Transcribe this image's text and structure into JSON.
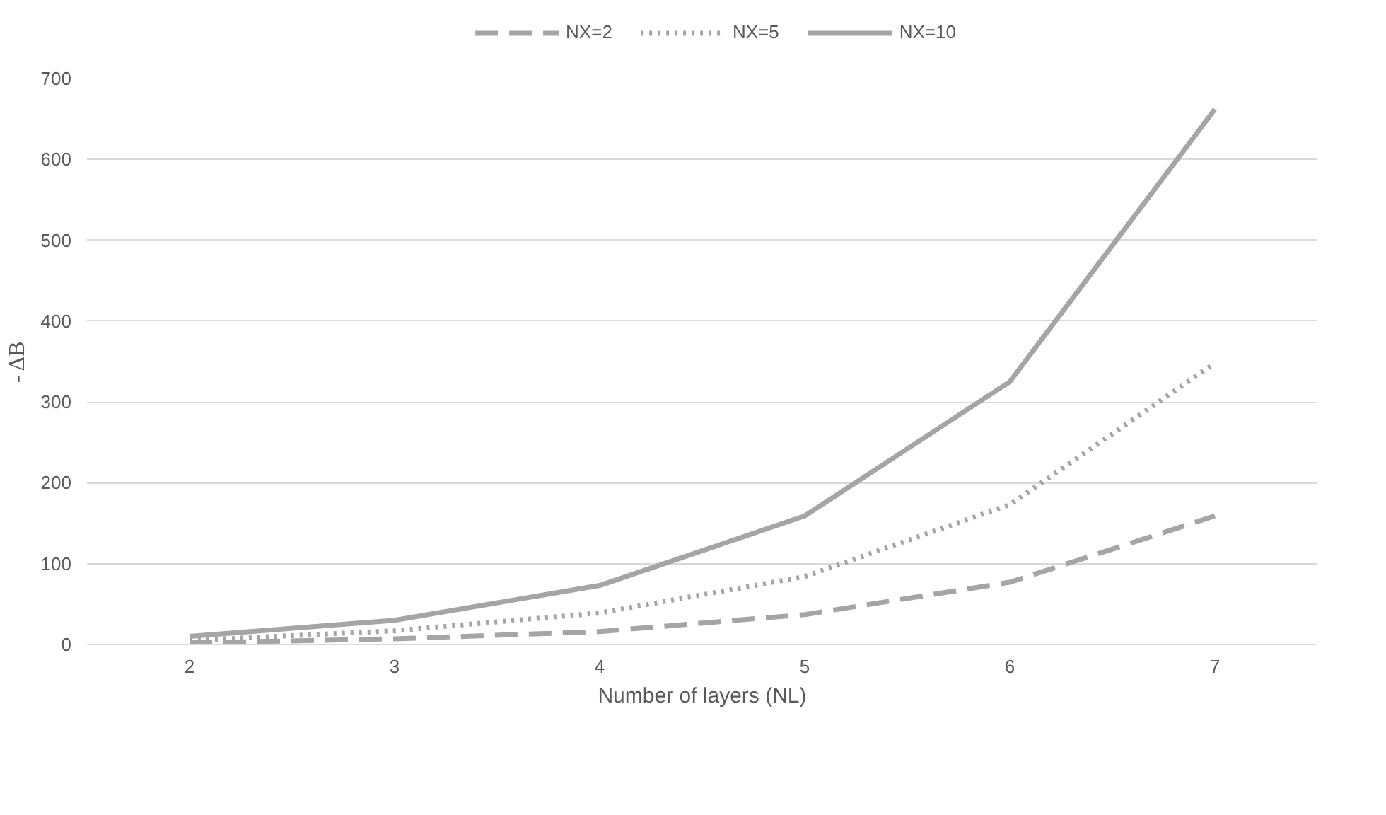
{
  "chart_data": {
    "type": "line",
    "xlabel": "Number of layers (NL)",
    "ylabel": "- ΔB",
    "categories": [
      "2",
      "3",
      "4",
      "5",
      "6",
      "7"
    ],
    "series": [
      {
        "name": "NX=2",
        "color": "#a5a5a5",
        "line_style": "dashed",
        "values": [
          2,
          7,
          16,
          37,
          77,
          159
        ]
      },
      {
        "name": "NX=5",
        "color": "#a5a5a5",
        "line_style": "dotted",
        "values": [
          5,
          17,
          39,
          84,
          173,
          348
        ]
      },
      {
        "name": "NX=10",
        "color": "#a5a5a5",
        "line_style": "solid",
        "values": [
          10,
          30,
          73,
          159,
          325,
          662
        ]
      }
    ],
    "ylim": [
      0,
      700
    ],
    "yticks": [
      0,
      100,
      200,
      300,
      400,
      500,
      600,
      700
    ],
    "grid": "y",
    "legend": "top",
    "marker": "none"
  }
}
